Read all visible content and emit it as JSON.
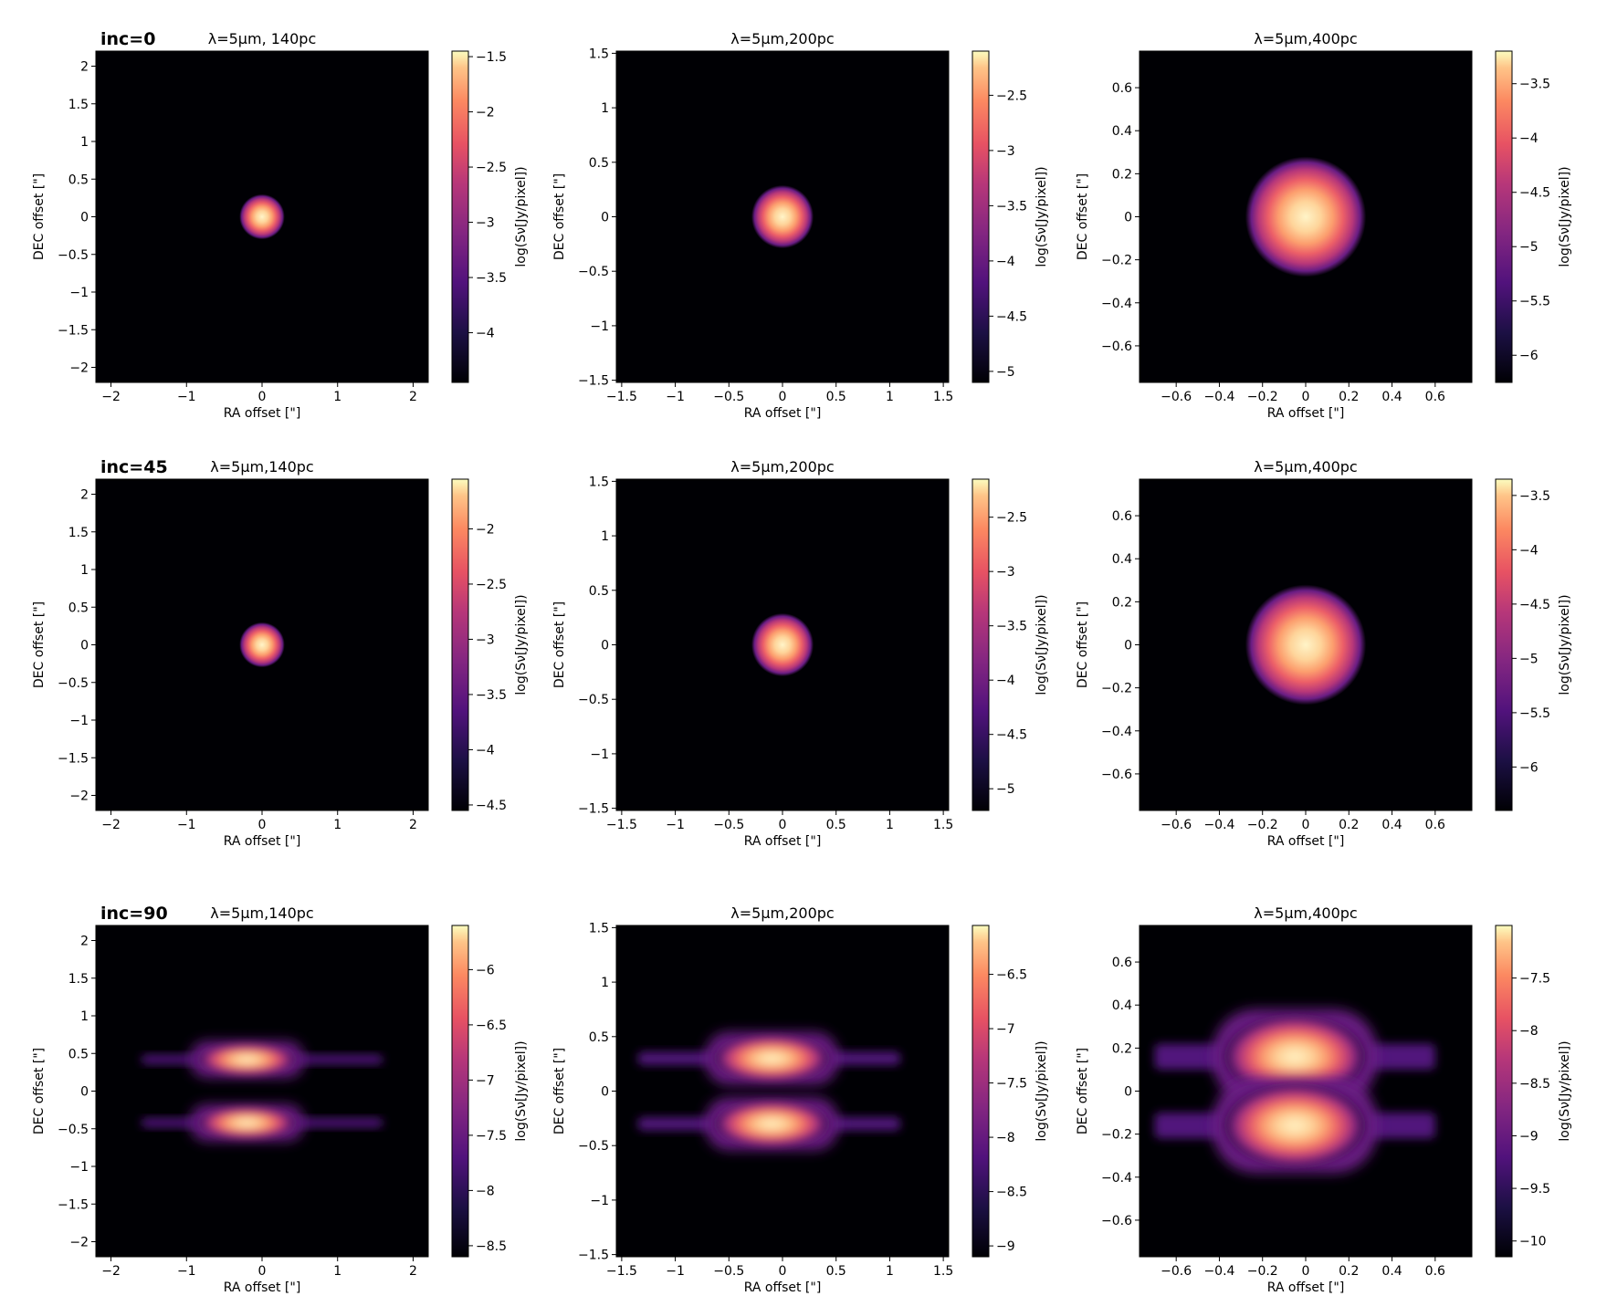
{
  "figure_note": "",
  "chart_data": [
    {
      "type": "heatmap",
      "row": 0,
      "col": 0,
      "row_label": "inc=0",
      "title": "λ=5μm, 140pc",
      "xlabel": "RA offset [\"]",
      "ylabel": "DEC offset [\"]",
      "xlim": [
        -2.2,
        2.2
      ],
      "ylim": [
        -2.2,
        2.2
      ],
      "xticks": [
        -2,
        -1,
        0,
        1,
        2
      ],
      "yticks": [
        -2.0,
        -1.5,
        -1.0,
        -0.5,
        0.0,
        0.5,
        1.0,
        1.5,
        2.0
      ],
      "colorbar": {
        "label": "log(Sν[Jy/pixel])",
        "range": [
          -4.45,
          -1.45
        ],
        "ticks": [
          -4.0,
          -3.5,
          -3.0,
          -2.5,
          -2.0,
          -1.5
        ]
      },
      "source": {
        "shape": "disk",
        "center": [
          0,
          0
        ],
        "radius": 0.3
      }
    },
    {
      "type": "heatmap",
      "row": 0,
      "col": 1,
      "row_label": "",
      "title": "λ=5μm,200pc",
      "xlabel": "RA offset [\"]",
      "ylabel": "DEC offset [\"]",
      "xlim": [
        -1.55,
        1.55
      ],
      "ylim": [
        -1.52,
        1.52
      ],
      "xticks": [
        -1.5,
        -1.0,
        -0.5,
        0.0,
        0.5,
        1.0,
        1.5
      ],
      "yticks": [
        -1.5,
        -1.0,
        -0.5,
        0.0,
        0.5,
        1.0,
        1.5
      ],
      "colorbar": {
        "label": "log(Sν[Jy/pixel])",
        "range": [
          -5.1,
          -2.1
        ],
        "ticks": [
          -5.0,
          -4.5,
          -4.0,
          -3.5,
          -3.0,
          -2.5
        ]
      },
      "source": {
        "shape": "disk",
        "center": [
          0,
          0
        ],
        "radius": 0.29
      }
    },
    {
      "type": "heatmap",
      "row": 0,
      "col": 2,
      "row_label": "",
      "title": "λ=5μm,400pc",
      "xlabel": "RA offset [\"]",
      "ylabel": "DEC offset [\"]",
      "xlim": [
        -0.77,
        0.77
      ],
      "ylim": [
        -0.77,
        0.77
      ],
      "xticks": [
        -0.6,
        -0.4,
        -0.2,
        0.0,
        0.2,
        0.4,
        0.6
      ],
      "yticks": [
        -0.6,
        -0.4,
        -0.2,
        0.0,
        0.2,
        0.4,
        0.6
      ],
      "colorbar": {
        "label": "log(Sν[Jy/pixel])",
        "range": [
          -6.25,
          -3.2
        ],
        "ticks": [
          -6.0,
          -5.5,
          -5.0,
          -4.5,
          -4.0,
          -3.5
        ]
      },
      "source": {
        "shape": "disk",
        "center": [
          0,
          0
        ],
        "radius": 0.28
      }
    },
    {
      "type": "heatmap",
      "row": 1,
      "col": 0,
      "row_label": "inc=45",
      "title": "λ=5μm,140pc",
      "xlabel": "RA offset [\"]",
      "ylabel": "DEC offset [\"]",
      "xlim": [
        -2.2,
        2.2
      ],
      "ylim": [
        -2.2,
        2.2
      ],
      "xticks": [
        -2,
        -1,
        0,
        1,
        2
      ],
      "yticks": [
        -2.0,
        -1.5,
        -1.0,
        -0.5,
        0.0,
        0.5,
        1.0,
        1.5,
        2.0
      ],
      "colorbar": {
        "label": "log(Sν[Jy/pixel])",
        "range": [
          -4.55,
          -1.55
        ],
        "ticks": [
          -4.5,
          -4.0,
          -3.5,
          -3.0,
          -2.5,
          -2.0
        ]
      },
      "source": {
        "shape": "disk",
        "center": [
          0,
          0
        ],
        "radius": 0.3
      }
    },
    {
      "type": "heatmap",
      "row": 1,
      "col": 1,
      "row_label": "",
      "title": "λ=5μm,200pc",
      "xlabel": "RA offset [\"]",
      "ylabel": "DEC offset [\"]",
      "xlim": [
        -1.55,
        1.55
      ],
      "ylim": [
        -1.52,
        1.52
      ],
      "xticks": [
        -1.5,
        -1.0,
        -0.5,
        0.0,
        0.5,
        1.0,
        1.5
      ],
      "yticks": [
        -1.5,
        -1.0,
        -0.5,
        0.0,
        0.5,
        1.0,
        1.5
      ],
      "colorbar": {
        "label": "log(Sν[Jy/pixel])",
        "range": [
          -5.2,
          -2.15
        ],
        "ticks": [
          -5.0,
          -4.5,
          -4.0,
          -3.5,
          -3.0,
          -2.5
        ]
      },
      "source": {
        "shape": "disk",
        "center": [
          0,
          0
        ],
        "radius": 0.29
      }
    },
    {
      "type": "heatmap",
      "row": 1,
      "col": 2,
      "row_label": "",
      "title": "λ=5μm,400pc",
      "xlabel": "RA offset [\"]",
      "ylabel": "DEC offset [\"]",
      "xlim": [
        -0.77,
        0.77
      ],
      "ylim": [
        -0.77,
        0.77
      ],
      "xticks": [
        -0.6,
        -0.4,
        -0.2,
        0.0,
        0.2,
        0.4,
        0.6
      ],
      "yticks": [
        -0.6,
        -0.4,
        -0.2,
        0.0,
        0.2,
        0.4,
        0.6
      ],
      "colorbar": {
        "label": "log(Sν[Jy/pixel])",
        "range": [
          -6.4,
          -3.35
        ],
        "ticks": [
          -6.0,
          -5.5,
          -5.0,
          -4.5,
          -4.0,
          -3.5
        ]
      },
      "source": {
        "shape": "disk",
        "center": [
          0,
          0
        ],
        "radius": 0.28
      }
    },
    {
      "type": "heatmap",
      "row": 2,
      "col": 0,
      "row_label": "inc=90",
      "title": "λ=5μm,140pc",
      "xlabel": "RA offset [\"]",
      "ylabel": "DEC offset [\"]",
      "xlim": [
        -2.2,
        2.2
      ],
      "ylim": [
        -2.2,
        2.2
      ],
      "xticks": [
        -2,
        -1,
        0,
        1,
        2
      ],
      "yticks": [
        -2.0,
        -1.5,
        -1.0,
        -0.5,
        0.0,
        0.5,
        1.0,
        1.5,
        2.0
      ],
      "colorbar": {
        "label": "log(Sν[Jy/pixel])",
        "range": [
          -8.6,
          -5.6
        ],
        "ticks": [
          -8.5,
          -8.0,
          -7.5,
          -7.0,
          -6.5,
          -6.0
        ]
      },
      "source": {
        "shape": "edge-on-disk",
        "lobes": [
          {
            "center": [
              -0.2,
              0.42
            ],
            "half_width": 0.75,
            "half_height": 0.24
          },
          {
            "center": [
              -0.2,
              -0.42
            ],
            "half_width": 0.75,
            "half_height": 0.24
          }
        ],
        "tails_x": [
          -1.6,
          1.6
        ]
      }
    },
    {
      "type": "heatmap",
      "row": 2,
      "col": 1,
      "row_label": "",
      "title": "λ=5μm,200pc",
      "xlabel": "RA offset [\"]",
      "ylabel": "DEC offset [\"]",
      "xlim": [
        -1.55,
        1.55
      ],
      "ylim": [
        -1.52,
        1.52
      ],
      "xticks": [
        -1.5,
        -1.0,
        -0.5,
        0.0,
        0.5,
        1.0,
        1.5
      ],
      "yticks": [
        -1.5,
        -1.0,
        -0.5,
        0.0,
        0.5,
        1.0,
        1.5
      ],
      "colorbar": {
        "label": "log(Sν[Jy/pixel])",
        "range": [
          -9.1,
          -6.05
        ],
        "ticks": [
          -9.0,
          -8.5,
          -8.0,
          -7.5,
          -7.0,
          -6.5
        ]
      },
      "source": {
        "shape": "edge-on-disk",
        "lobes": [
          {
            "center": [
              -0.1,
              0.3
            ],
            "half_width": 0.62,
            "half_height": 0.24
          },
          {
            "center": [
              -0.1,
              -0.3
            ],
            "half_width": 0.62,
            "half_height": 0.24
          }
        ],
        "tails_x": [
          -1.35,
          1.1
        ]
      }
    },
    {
      "type": "heatmap",
      "row": 2,
      "col": 2,
      "row_label": "",
      "title": "λ=5μm,400pc",
      "xlabel": "RA offset [\"]",
      "ylabel": "DEC offset [\"]",
      "xlim": [
        -0.77,
        0.77
      ],
      "ylim": [
        -0.77,
        0.77
      ],
      "xticks": [
        -0.6,
        -0.4,
        -0.2,
        0.0,
        0.2,
        0.4,
        0.6
      ],
      "yticks": [
        -0.6,
        -0.4,
        -0.2,
        0.0,
        0.2,
        0.4,
        0.6
      ],
      "colorbar": {
        "label": "log(Sν[Jy/pixel])",
        "range": [
          -10.15,
          -7.0
        ],
        "ticks": [
          -10.0,
          -9.5,
          -9.0,
          -8.5,
          -8.0,
          -7.5
        ]
      },
      "source": {
        "shape": "edge-on-disk",
        "lobes": [
          {
            "center": [
              -0.05,
              0.16
            ],
            "half_width": 0.38,
            "half_height": 0.22
          },
          {
            "center": [
              -0.05,
              -0.16
            ],
            "half_width": 0.38,
            "half_height": 0.22
          }
        ],
        "tails_x": [
          -0.7,
          0.6
        ]
      }
    }
  ]
}
